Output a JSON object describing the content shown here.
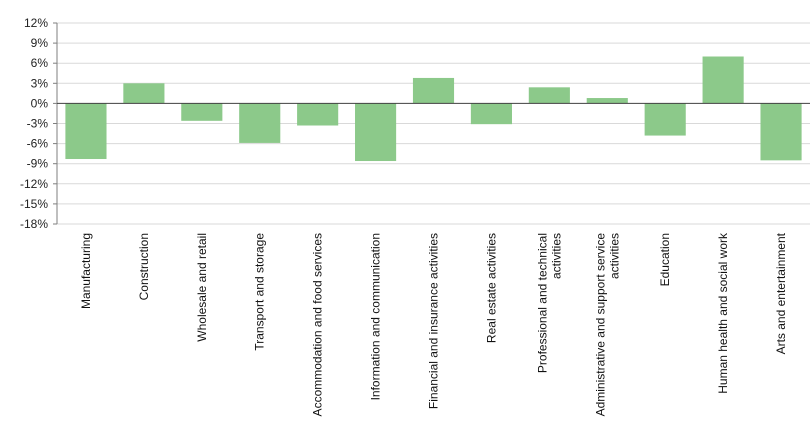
{
  "chart_data": {
    "type": "bar",
    "title": "",
    "xlabel": "",
    "ylabel": "",
    "ylim": [
      -18,
      12
    ],
    "yticks": [
      12,
      9,
      6,
      3,
      0,
      -3,
      -6,
      -9,
      -12,
      -15,
      -18
    ],
    "ytick_labels": [
      "12%",
      "9%",
      "6%",
      "3%",
      "0%",
      "-3%",
      "-6%",
      "-9%",
      "-12%",
      "-15%",
      "-18%"
    ],
    "grid": "horizontal",
    "legend": "none",
    "bar_color": "#8cc98a",
    "categories": [
      [
        "Manufacturing"
      ],
      [
        "Construction"
      ],
      [
        "Wholesale and retail"
      ],
      [
        "Transport and storage"
      ],
      [
        "Accommodation and food services"
      ],
      [
        "Information and communication"
      ],
      [
        "Financial and insurance activities"
      ],
      [
        "Real estate activities"
      ],
      [
        "Professional and technical",
        "activities"
      ],
      [
        "Administrative and support service",
        "activities"
      ],
      [
        "Education"
      ],
      [
        "Human health and social work"
      ],
      [
        "Arts and entertainment"
      ]
    ],
    "values": [
      -8.3,
      3.0,
      -2.6,
      -5.9,
      -3.3,
      -8.6,
      3.8,
      -3.1,
      2.4,
      0.8,
      -4.8,
      7.0,
      -8.5
    ]
  }
}
